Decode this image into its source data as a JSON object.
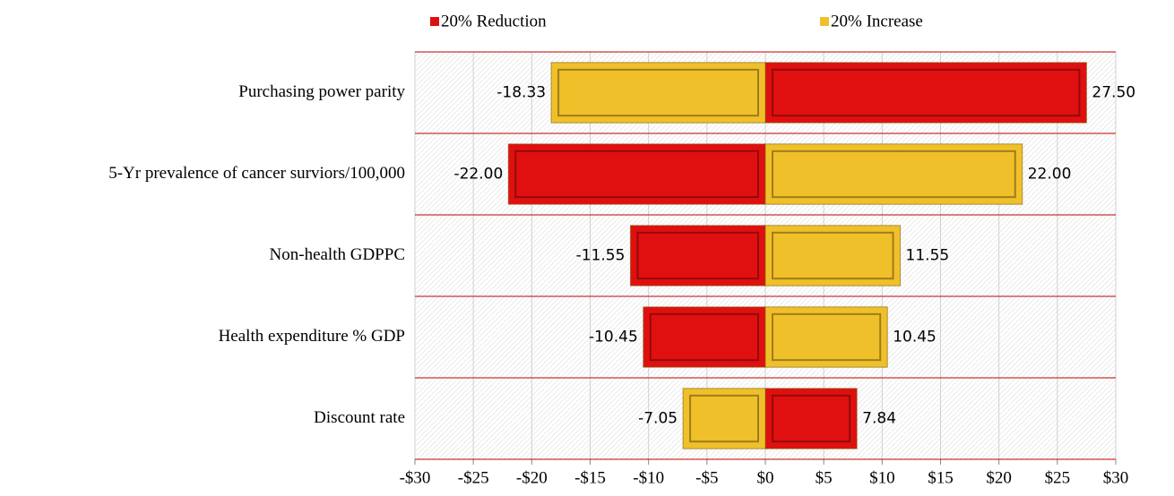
{
  "chart_data": {
    "type": "tornado",
    "categories": [
      "Purchasing power parity",
      "5-Yr prevalence of cancer surviors/100,000",
      "Non-health GDPPC",
      "Health expenditure % GDP",
      "Discount rate"
    ],
    "series": [
      {
        "name": "20% Reduction",
        "color": "#e01010",
        "values": [
          27.5,
          -22,
          -11.55,
          -10.45,
          7.84
        ],
        "value_labels": [
          "27.50",
          "-22.00",
          "-11.55",
          "-10.45",
          "7.84"
        ]
      },
      {
        "name": "20% Increase",
        "color": "#f0c02a",
        "values": [
          -18.33,
          22,
          11.55,
          10.45,
          -7.05
        ],
        "value_labels": [
          "-18.33",
          "22.00",
          "11.55",
          "10.45",
          "-7.05"
        ]
      }
    ],
    "xlim": [
      -30,
      30
    ],
    "xticks": [
      {
        "value": -30,
        "label": "-$30"
      },
      {
        "value": -25,
        "label": "-$25"
      },
      {
        "value": -20,
        "label": "-$20"
      },
      {
        "value": -15,
        "label": "-$15"
      },
      {
        "value": -10,
        "label": "-$10"
      },
      {
        "value": -5,
        "label": "-$5"
      },
      {
        "value": 0,
        "label": "$0"
      },
      {
        "value": 5,
        "label": "$5"
      },
      {
        "value": 10,
        "label": "$10"
      },
      {
        "value": 15,
        "label": "$15"
      },
      {
        "value": 20,
        "label": "$20"
      },
      {
        "value": 25,
        "label": "$25"
      },
      {
        "value": 30,
        "label": "$30"
      }
    ],
    "grid": true,
    "legend": "top"
  }
}
